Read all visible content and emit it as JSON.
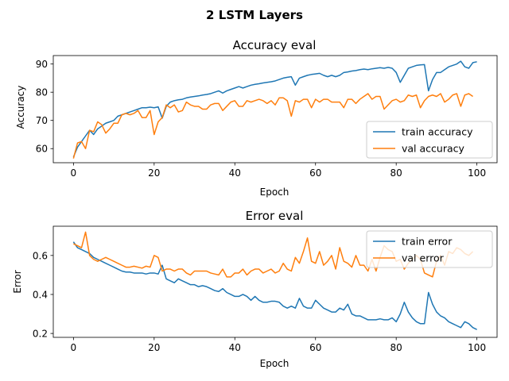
{
  "figure": {
    "suptitle": "2 LSTM Layers"
  },
  "chart_data": [
    {
      "type": "line",
      "title": "Accuracy eval",
      "xlabel": "Epoch",
      "ylabel": "Accuracy",
      "xlim": [
        -5,
        105
      ],
      "ylim": [
        55,
        93
      ],
      "xticks": [
        0,
        20,
        40,
        60,
        80,
        100
      ],
      "yticks": [
        60,
        70,
        80,
        90
      ],
      "legend": "lower-right",
      "series": [
        {
          "name": "train accuracy",
          "color": "#1f77b4",
          "values": [
            57,
            60.5,
            62.5,
            64.5,
            66.5,
            65,
            67,
            68,
            69,
            69.5,
            70,
            71.5,
            72,
            72.5,
            73,
            73.5,
            74,
            74.5,
            74.5,
            74.7,
            74.5,
            74.8,
            70.8,
            75,
            76.5,
            77,
            77.3,
            77.5,
            78,
            78.3,
            78.5,
            78.7,
            79,
            79.2,
            79.5,
            80,
            80.5,
            79.7,
            80.5,
            81,
            81.5,
            82,
            81.5,
            82,
            82.5,
            82.8,
            83,
            83.3,
            83.5,
            83.7,
            84,
            84.5,
            85,
            85.3,
            85.5,
            82.5,
            85,
            85.5,
            86,
            86.3,
            86.5,
            86.7,
            86,
            85.5,
            86,
            85.5,
            86,
            87,
            87.2,
            87.5,
            87.7,
            88,
            88.2,
            88,
            88.3,
            88.5,
            88.7,
            88.5,
            88.8,
            88.5,
            87,
            83.5,
            86,
            88.5,
            89,
            89.5,
            89.7,
            89.8,
            80.5,
            84.5,
            87,
            87,
            88,
            89,
            89.5,
            90,
            91,
            89,
            88.5,
            90.5,
            90.8
          ]
        },
        {
          "name": "val accuracy",
          "color": "#ff7f0e",
          "values": [
            56.5,
            62,
            62.5,
            60,
            66.5,
            66,
            69.5,
            68.5,
            65.5,
            67,
            69,
            69,
            72,
            72.5,
            72,
            72.5,
            73.5,
            71,
            71,
            73.5,
            65,
            69.5,
            71,
            75.5,
            74.5,
            75.5,
            73,
            73.5,
            76.5,
            75.5,
            75,
            75,
            74,
            74,
            75.5,
            76,
            76,
            73.5,
            75,
            76.5,
            77,
            75,
            75,
            77,
            76.5,
            77,
            77.5,
            77,
            76,
            77,
            75.5,
            78,
            78,
            77,
            71.5,
            77,
            76.5,
            77.5,
            77.5,
            74.5,
            77.5,
            76.5,
            77.5,
            77.5,
            76.5,
            76.5,
            76.5,
            74.5,
            77.5,
            77.5,
            76,
            77.5,
            78.5,
            79.5,
            77.5,
            78.5,
            78.5,
            74,
            75.5,
            77,
            77.5,
            76.5,
            77,
            79,
            78.5,
            79,
            74.5,
            77,
            78.5,
            79,
            78.5,
            79.5,
            76.5,
            77.5,
            79,
            79.5,
            75,
            79,
            79.5,
            78.5
          ]
        }
      ]
    },
    {
      "type": "line",
      "title": "Error eval",
      "xlabel": "Epoch",
      "ylabel": "Error",
      "xlim": [
        -5,
        105
      ],
      "ylim": [
        0.18,
        0.75
      ],
      "xticks": [
        0,
        20,
        40,
        60,
        80,
        100
      ],
      "yticks": [
        0.2,
        0.4,
        0.6
      ],
      "legend": "upper-right",
      "series": [
        {
          "name": "train error",
          "color": "#1f77b4",
          "values": [
            0.67,
            0.64,
            0.63,
            0.62,
            0.61,
            0.59,
            0.58,
            0.57,
            0.56,
            0.55,
            0.54,
            0.53,
            0.52,
            0.515,
            0.515,
            0.51,
            0.51,
            0.51,
            0.505,
            0.51,
            0.51,
            0.505,
            0.55,
            0.48,
            0.47,
            0.46,
            0.48,
            0.47,
            0.46,
            0.45,
            0.45,
            0.44,
            0.445,
            0.44,
            0.43,
            0.42,
            0.415,
            0.43,
            0.41,
            0.4,
            0.39,
            0.39,
            0.4,
            0.39,
            0.37,
            0.39,
            0.37,
            0.36,
            0.36,
            0.365,
            0.365,
            0.36,
            0.34,
            0.33,
            0.34,
            0.33,
            0.38,
            0.34,
            0.33,
            0.33,
            0.37,
            0.35,
            0.33,
            0.32,
            0.31,
            0.31,
            0.33,
            0.32,
            0.35,
            0.3,
            0.29,
            0.29,
            0.28,
            0.27,
            0.27,
            0.27,
            0.275,
            0.27,
            0.27,
            0.28,
            0.26,
            0.3,
            0.36,
            0.31,
            0.28,
            0.26,
            0.25,
            0.25,
            0.41,
            0.35,
            0.31,
            0.29,
            0.28,
            0.26,
            0.25,
            0.24,
            0.23,
            0.26,
            0.25,
            0.23,
            0.22
          ]
        },
        {
          "name": "val error",
          "color": "#ff7f0e",
          "values": [
            0.66,
            0.65,
            0.64,
            0.72,
            0.6,
            0.58,
            0.57,
            0.58,
            0.59,
            0.58,
            0.57,
            0.56,
            0.55,
            0.54,
            0.54,
            0.545,
            0.54,
            0.535,
            0.545,
            0.54,
            0.6,
            0.59,
            0.52,
            0.53,
            0.53,
            0.52,
            0.53,
            0.53,
            0.51,
            0.5,
            0.52,
            0.52,
            0.52,
            0.52,
            0.51,
            0.505,
            0.5,
            0.53,
            0.49,
            0.49,
            0.51,
            0.51,
            0.53,
            0.5,
            0.52,
            0.53,
            0.53,
            0.51,
            0.52,
            0.53,
            0.51,
            0.52,
            0.56,
            0.53,
            0.52,
            0.59,
            0.56,
            0.62,
            0.69,
            0.57,
            0.56,
            0.62,
            0.55,
            0.57,
            0.6,
            0.53,
            0.64,
            0.57,
            0.56,
            0.54,
            0.6,
            0.55,
            0.55,
            0.52,
            0.58,
            0.52,
            0.59,
            0.65,
            0.63,
            0.62,
            0.57,
            0.58,
            0.53,
            0.56,
            0.58,
            0.6,
            0.58,
            0.51,
            0.5,
            0.49,
            0.57,
            0.6,
            0.55,
            0.62,
            0.61,
            0.64,
            0.63,
            0.61,
            0.6,
            0.62
          ]
        }
      ]
    }
  ]
}
